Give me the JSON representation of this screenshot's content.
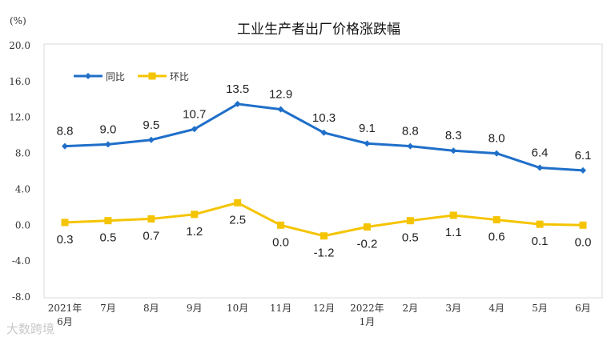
{
  "chart_data": {
    "type": "line",
    "title": "工业生产者出厂价格涨跌幅",
    "ylabel": "(%)",
    "xlabel": "",
    "ylim": [
      -8.0,
      20.0
    ],
    "yticks": [
      "20.0",
      "16.0",
      "12.0",
      "8.0",
      "4.0",
      "0.0",
      "-4.0",
      "-8.0"
    ],
    "ytick_values": [
      20,
      16,
      12,
      8,
      4,
      0,
      -4,
      -8
    ],
    "categories": [
      "2021年6月",
      "7月",
      "8月",
      "9月",
      "10月",
      "11月",
      "12月",
      "2022年1月",
      "2月",
      "3月",
      "4月",
      "5月",
      "6月"
    ],
    "category_lines": [
      [
        "2021年",
        "6月"
      ],
      [
        "7月"
      ],
      [
        "8月"
      ],
      [
        "9月"
      ],
      [
        "10月"
      ],
      [
        "11月"
      ],
      [
        "12月"
      ],
      [
        "2022年",
        "1月"
      ],
      [
        "2月"
      ],
      [
        "3月"
      ],
      [
        "4月"
      ],
      [
        "5月"
      ],
      [
        "6月"
      ]
    ],
    "legend_position": "top-left",
    "series": [
      {
        "name": "同比",
        "color": "#1F6FC9",
        "marker": "diamond",
        "values": [
          8.8,
          9.0,
          9.5,
          10.7,
          13.5,
          12.9,
          10.3,
          9.1,
          8.8,
          8.3,
          8.0,
          6.4,
          6.1
        ],
        "labels": [
          "8.8",
          "9.0",
          "9.5",
          "10.7",
          "13.5",
          "12.9",
          "10.3",
          "9.1",
          "8.8",
          "8.3",
          "8.0",
          "6.4",
          "6.1"
        ]
      },
      {
        "name": "环比",
        "color": "#F5C400",
        "marker": "square",
        "values": [
          0.3,
          0.5,
          0.7,
          1.2,
          2.5,
          0.0,
          -1.2,
          -0.2,
          0.5,
          1.1,
          0.6,
          0.1,
          0.0
        ],
        "labels": [
          "0.3",
          "0.5",
          "0.7",
          "1.2",
          "2.5",
          "0.0",
          "-1.2",
          "-0.2",
          "0.5",
          "1.1",
          "0.6",
          "0.1",
          "0.0"
        ]
      }
    ]
  },
  "watermark": "大数跨境"
}
